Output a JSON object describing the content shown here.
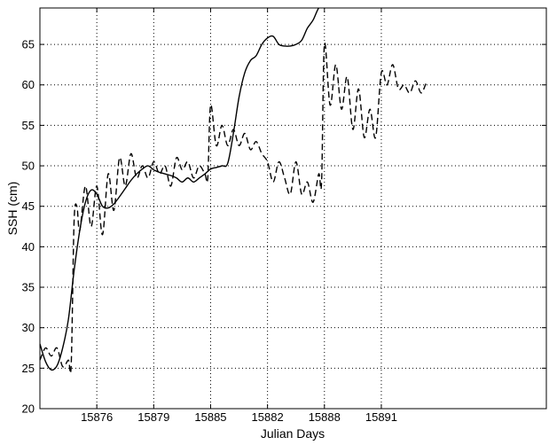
{
  "chart_data": {
    "type": "line",
    "title": "",
    "xlabel": "Julian Days",
    "ylabel": "SSH (cm)",
    "xlim": [
      0,
      8.9
    ],
    "ylim": [
      20,
      69.5
    ],
    "x_ticks": [
      {
        "pos": 1,
        "label": "15876"
      },
      {
        "pos": 2,
        "label": "15879"
      },
      {
        "pos": 3,
        "label": "15885"
      },
      {
        "pos": 4,
        "label": "15882"
      },
      {
        "pos": 5,
        "label": "15888"
      },
      {
        "pos": 6,
        "label": "15891"
      }
    ],
    "y_ticks": [
      20,
      25,
      30,
      35,
      40,
      45,
      50,
      55,
      60,
      65
    ],
    "grid": true,
    "series": [
      {
        "style": "solid",
        "color": "#000000",
        "x": [
          0,
          0.1,
          0.2,
          0.3,
          0.4,
          0.5,
          0.6,
          0.7,
          0.8,
          0.9,
          1.0,
          1.1,
          1.2,
          1.3,
          1.4,
          1.5,
          1.6,
          1.7,
          1.8,
          1.9,
          2.0,
          2.1,
          2.2,
          2.3,
          2.4,
          2.5,
          2.6,
          2.7,
          2.8,
          2.9,
          3.0,
          3.1,
          3.2,
          3.3,
          3.4,
          3.5,
          3.6,
          3.7,
          3.8,
          3.9,
          4.0,
          4.1,
          4.2,
          4.3,
          4.4,
          4.5,
          4.6,
          4.7,
          4.8,
          4.9,
          5.0,
          5.1,
          5.2,
          5.3,
          5.4,
          5.5,
          5.6,
          5.7,
          5.8
        ],
        "y": [
          28,
          25.8,
          24.8,
          25.3,
          27.5,
          31,
          37,
          42,
          45.5,
          47,
          46.5,
          45,
          44.8,
          45.3,
          46.2,
          47.2,
          48.2,
          49,
          49.6,
          50,
          49.5,
          49.2,
          49,
          48.8,
          48.5,
          48,
          48.5,
          48,
          48.5,
          49,
          49.6,
          49.8,
          50,
          50.3,
          54,
          58.5,
          61.5,
          63,
          63.6,
          65,
          65.8,
          66,
          65,
          64.8,
          64.8,
          65,
          65.5,
          67,
          68,
          69.5,
          70,
          70,
          70,
          70,
          70,
          70,
          70,
          70,
          70
        ]
      },
      {
        "style": "dashed",
        "color": "#000000",
        "x": [
          0,
          0.1,
          0.2,
          0.3,
          0.4,
          0.5,
          0.55,
          0.6,
          0.65,
          0.7,
          0.8,
          0.9,
          1.0,
          1.1,
          1.2,
          1.3,
          1.4,
          1.5,
          1.6,
          1.7,
          1.8,
          1.9,
          2.0,
          2.1,
          2.2,
          2.3,
          2.4,
          2.5,
          2.6,
          2.7,
          2.8,
          2.9,
          2.95,
          3.0,
          3.1,
          3.2,
          3.3,
          3.4,
          3.5,
          3.6,
          3.7,
          3.8,
          3.9,
          4.0,
          4.1,
          4.2,
          4.3,
          4.4,
          4.5,
          4.6,
          4.7,
          4.8,
          4.9,
          4.95,
          5.0,
          5.1,
          5.2,
          5.3,
          5.4,
          5.5,
          5.6,
          5.7,
          5.8,
          5.9,
          6.0,
          6.1,
          6.2,
          6.3,
          6.4,
          6.5,
          6.6,
          6.7,
          6.8
        ],
        "y": [
          26,
          27.5,
          26.5,
          27.5,
          25.2,
          26,
          25.5,
          43,
          45,
          42,
          47.5,
          42.5,
          47.5,
          41.5,
          49,
          44.5,
          51,
          47.5,
          51.5,
          48.5,
          50,
          48.5,
          50.5,
          49,
          50,
          47.5,
          51,
          49.5,
          50.5,
          48.5,
          50,
          49,
          48.5,
          57.5,
          52.5,
          55,
          52.5,
          54.5,
          52.5,
          54,
          52,
          53,
          51.5,
          50.5,
          48,
          50.5,
          48.5,
          46.5,
          50.5,
          46.5,
          48,
          45.5,
          49,
          48,
          65,
          57.5,
          62.5,
          57,
          61,
          54.5,
          59.5,
          53.5,
          57,
          53.5,
          61.5,
          60,
          62.5,
          59.5,
          60,
          59,
          60.5,
          59,
          60.5
        ]
      }
    ]
  }
}
